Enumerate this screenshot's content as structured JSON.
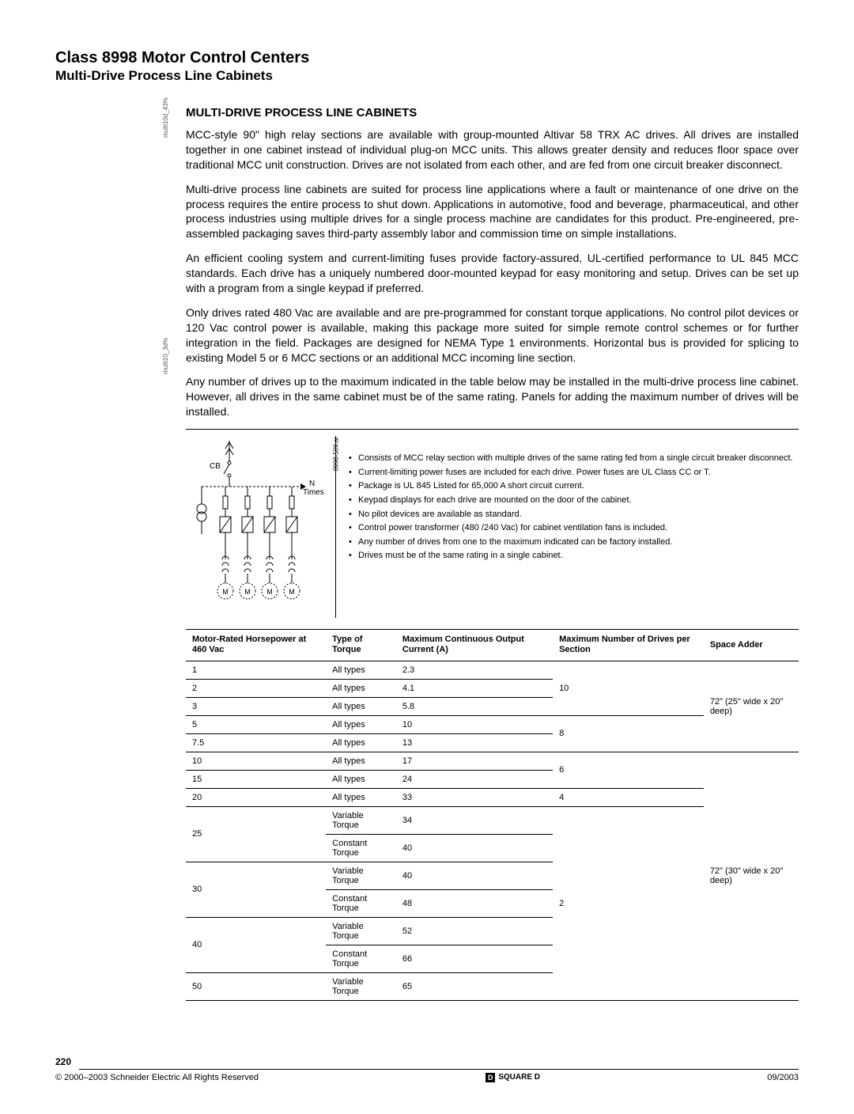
{
  "header": {
    "title_main": "Class 8998 Motor Control Centers",
    "title_sub": "Multi-Drive Process Line Cabinets"
  },
  "side_labels": {
    "label1": "multi10d_43%",
    "label2": "multi10_3d%"
  },
  "section": {
    "heading": "MULTI-DRIVE PROCESS LINE CABINETS",
    "paragraphs": [
      "MCC-style 90\" high relay sections are available with group-mounted Altivar 58 TRX AC drives. All drives are installed together in one cabinet instead of individual plug-on MCC units. This allows greater density and reduces floor space over traditional MCC unit construction. Drives are not isolated from each other, and are fed from one circuit breaker disconnect.",
      "Multi-drive process line cabinets are suited for process line applications where a fault or maintenance of one drive on the process requires the entire process to shut down. Applications in automotive, food and beverage, pharmaceutical, and other process industries using multiple drives for a single process machine are candidates for this product. Pre-engineered, pre-assembled packaging saves third-party assembly labor and commission time on simple installations.",
      "An efficient cooling system and current-limiting fuses provide factory-assured, UL-certified performance to UL 845 MCC standards. Each drive has a uniquely numbered door-mounted keypad for easy monitoring and setup. Drives can be set up with a program from a single keypad if preferred.",
      "Only drives rated 480 Vac are available and are pre-programmed for constant torque applications. No control pilot devices or 120 Vac control power is available, making this package more suited for simple remote control schemes or for further integration in the field. Packages are designed for NEMA Type 1 environments. Horizontal bus is provided for splicing to existing Model 5 or 6 MCC sections or an additional MCC incoming line section.",
      "Any number of drives up to the maximum indicated in the table below may be installed in the multi-drive process line cabinet. However, all drives in the same cabinet must be of the same rating. Panels for adding the maximum number of drives will be installed."
    ]
  },
  "diagram": {
    "svg_label": "8998-509.ai",
    "cb_label": "CB",
    "n_times": "N\nTimes",
    "m": "M",
    "bullets": [
      "Consists of MCC relay section with multiple drives of the same rating fed from a single circuit breaker disconnect.",
      "Current-limiting power fuses are included for each drive. Power fuses are UL Class CC or T.",
      "Package is UL 845 Listed for 65,000 A short circuit current.",
      "Keypad displays for each drive are mounted on the door of the cabinet.",
      "No pilot devices are available as standard.",
      "Control power transformer (480 /240 Vac) for cabinet ventilation fans is included.",
      "Any number of drives from one to the maximum indicated can be factory installed.",
      "Drives must be of the same rating in a single cabinet."
    ]
  },
  "table": {
    "columns": [
      "Motor-Rated Horsepower at 460 Vac",
      "Type of Torque",
      "Maximum Continuous Output Current (A)",
      "Maximum Number of Drives per Section",
      "Space Adder"
    ],
    "rows": [
      {
        "hp": "1",
        "torque": "All types",
        "current": "2.3",
        "drives": "",
        "space": ""
      },
      {
        "hp": "2",
        "torque": "All types",
        "current": "4.1",
        "drives": "10",
        "space": ""
      },
      {
        "hp": "3",
        "torque": "All types",
        "current": "5.8",
        "drives": "",
        "space": "72\" (25\" wide x 20\" deep)"
      },
      {
        "hp": "5",
        "torque": "All types",
        "current": "10",
        "drives": "8",
        "space": ""
      },
      {
        "hp": "7.5",
        "torque": "All types",
        "current": "13",
        "drives": "",
        "space": ""
      },
      {
        "hp": "10",
        "torque": "All types",
        "current": "17",
        "drives": "6",
        "space": ""
      },
      {
        "hp": "15",
        "torque": "All types",
        "current": "24",
        "drives": "",
        "space": ""
      },
      {
        "hp": "20",
        "torque": "All types",
        "current": "33",
        "drives": "4",
        "space": ""
      },
      {
        "hp": "25",
        "torque": "Variable Torque",
        "current": "34",
        "drives": "",
        "space": ""
      },
      {
        "hp": "",
        "torque": "Constant Torque",
        "current": "40",
        "drives": "",
        "space": "72\" (30\" wide x 20\" deep)"
      },
      {
        "hp": "30",
        "torque": "Variable Torque",
        "current": "40",
        "drives": "",
        "space": ""
      },
      {
        "hp": "",
        "torque": "Constant Torque",
        "current": "48",
        "drives": "2",
        "space": ""
      },
      {
        "hp": "40",
        "torque": "Variable Torque",
        "current": "52",
        "drives": "",
        "space": ""
      },
      {
        "hp": "",
        "torque": "Constant Torque",
        "current": "66",
        "drives": "",
        "space": ""
      },
      {
        "hp": "50",
        "torque": "Variable Torque",
        "current": "65",
        "drives": "",
        "space": ""
      }
    ],
    "merges": {
      "drives": [
        {
          "start": 0,
          "span": 3,
          "value": "10"
        },
        {
          "start": 3,
          "span": 2,
          "value": "8"
        },
        {
          "start": 5,
          "span": 2,
          "value": "6"
        },
        {
          "start": 7,
          "span": 1,
          "value": "4"
        },
        {
          "start": 8,
          "span": 7,
          "value": "2"
        }
      ],
      "space": [
        {
          "start": 0,
          "span": 5,
          "value": "72\" (25\" wide x 20\" deep)"
        },
        {
          "start": 5,
          "span": 10,
          "value": "72\" (30\" wide x 20\" deep)"
        }
      ],
      "hp": [
        {
          "start": 8,
          "span": 2,
          "value": "25"
        },
        {
          "start": 10,
          "span": 2,
          "value": "30"
        },
        {
          "start": 12,
          "span": 2,
          "value": "40"
        }
      ]
    }
  },
  "footer": {
    "page": "220",
    "copyright": "© 2000–2003 Schneider Electric  All Rights Reserved",
    "logo_letter": "D",
    "logo_text": "SQUARE D",
    "date": "09/2003"
  },
  "colors": {
    "text": "#000000",
    "bg": "#ffffff",
    "rule": "#000000"
  }
}
